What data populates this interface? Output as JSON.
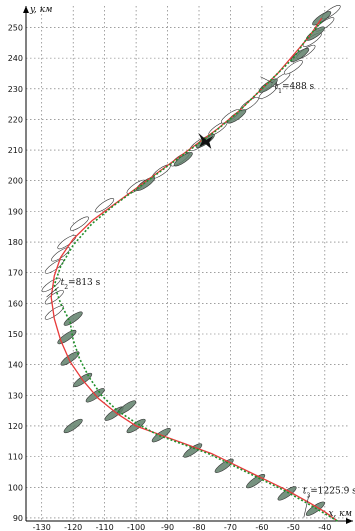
{
  "chart_data": {
    "type": "line",
    "xlabel": "x, км",
    "ylabel": "y, км",
    "xlim": [
      -135,
      -32
    ],
    "ylim": [
      89,
      257
    ],
    "x_ticks": [
      -130,
      -120,
      -110,
      -100,
      -90,
      -80,
      -70,
      -60,
      -50,
      -40
    ],
    "y_ticks": [
      90,
      100,
      110,
      120,
      130,
      140,
      150,
      160,
      170,
      180,
      190,
      200,
      210,
      220,
      230,
      240,
      250
    ],
    "grid": true,
    "colors": {
      "red": "#e83a3a",
      "green": "#1f8f2a",
      "ellipse_fill": "#5f7f6a",
      "ellipse_empty": "#ffffff"
    },
    "series": [
      {
        "values_xy": [
          [
            -36,
            89
          ],
          [
            -40,
            92
          ],
          [
            -45,
            95
          ],
          [
            -52,
            99
          ],
          [
            -60,
            103
          ],
          [
            -68,
            107
          ],
          [
            -76,
            111
          ],
          [
            -84,
            114
          ],
          [
            -92,
            117
          ],
          [
            -100,
            120
          ],
          [
            -106,
            124
          ],
          [
            -112,
            129
          ],
          [
            -117,
            135
          ],
          [
            -121,
            141
          ],
          [
            -124,
            148
          ],
          [
            -126,
            155
          ],
          [
            -127,
            162
          ],
          [
            -126,
            169
          ],
          [
            -124,
            175
          ],
          [
            -120,
            181
          ],
          [
            -114,
            187
          ],
          [
            -106,
            193
          ],
          [
            -98,
            199
          ],
          [
            -90,
            205
          ],
          [
            -82,
            211
          ],
          [
            -74,
            217
          ],
          [
            -67,
            223
          ],
          [
            -61,
            229
          ],
          [
            -55,
            235
          ],
          [
            -50,
            241
          ],
          [
            -45,
            247
          ],
          [
            -41,
            253
          ]
        ]
      },
      {
        "values_xy": [
          [
            -36,
            89
          ],
          [
            -41,
            92
          ],
          [
            -46,
            95
          ],
          [
            -53,
            99
          ],
          [
            -61,
            103
          ],
          [
            -69,
            107
          ],
          [
            -77,
            111
          ],
          [
            -85,
            114
          ],
          [
            -93,
            117
          ],
          [
            -100,
            121
          ],
          [
            -106,
            125
          ],
          [
            -111,
            130
          ],
          [
            -115,
            136
          ],
          [
            -118,
            142
          ],
          [
            -120,
            148
          ],
          [
            -121,
            154
          ],
          [
            -124,
            160
          ],
          [
            -126,
            166
          ],
          [
            -124,
            172
          ],
          [
            -120,
            179
          ],
          [
            -114,
            186
          ],
          [
            -107,
            192
          ],
          [
            -99,
            198
          ],
          [
            -91,
            204
          ],
          [
            -83,
            210
          ],
          [
            -75,
            216
          ],
          [
            -68,
            222
          ],
          [
            -62,
            228
          ],
          [
            -56,
            234
          ],
          [
            -50,
            240
          ],
          [
            -46,
            246
          ],
          [
            -41,
            252
          ]
        ]
      }
    ],
    "ellipses": {
      "filled": [
        [
          -43,
          93
        ],
        [
          -52,
          98
        ],
        [
          -62,
          102
        ],
        [
          -72,
          107
        ],
        [
          -82,
          112
        ],
        [
          -92,
          117
        ],
        [
          -100,
          120
        ],
        [
          -107,
          124
        ],
        [
          -113,
          130
        ],
        [
          -117,
          135
        ],
        [
          -121,
          142
        ],
        [
          -122,
          149
        ],
        [
          -120,
          155
        ],
        [
          -120,
          120
        ],
        [
          -103,
          126
        ],
        [
          -97,
          199
        ],
        [
          -85,
          207
        ],
        [
          -78,
          213
        ],
        [
          -68,
          221
        ],
        [
          -58,
          231
        ],
        [
          -48,
          241
        ],
        [
          -43,
          248
        ],
        [
          -41,
          253
        ]
      ],
      "empty": [
        [
          -126,
          157
        ],
        [
          -126,
          162
        ],
        [
          -127,
          166
        ],
        [
          -126,
          172
        ],
        [
          -124,
          176
        ],
        [
          -122,
          180
        ],
        [
          -118,
          186
        ],
        [
          -110,
          192
        ],
        [
          -100,
          198
        ],
        [
          -92,
          203
        ],
        [
          -86,
          207
        ],
        [
          -80,
          212
        ],
        [
          -74,
          217
        ],
        [
          -70,
          221
        ],
        [
          -64,
          225
        ],
        [
          -58,
          229
        ],
        [
          -54,
          233
        ],
        [
          -50,
          237
        ],
        [
          -46,
          242
        ],
        [
          -44,
          246
        ],
        [
          -40,
          251
        ],
        [
          -38,
          255
        ]
      ]
    },
    "annotations": [
      {
        "text": "t",
        "sub": "1",
        "rest": "=488 s",
        "x": -56,
        "y": 230
      },
      {
        "text": "t",
        "sub": "2",
        "rest": "=813 s",
        "x": -124,
        "y": 166
      },
      {
        "text": "t",
        "sub": "3",
        "rest": "=1225.9 s",
        "x": -47,
        "y": 98
      }
    ],
    "marker": {
      "icon": "aircraft-icon",
      "x": -78,
      "y": 213
    }
  }
}
